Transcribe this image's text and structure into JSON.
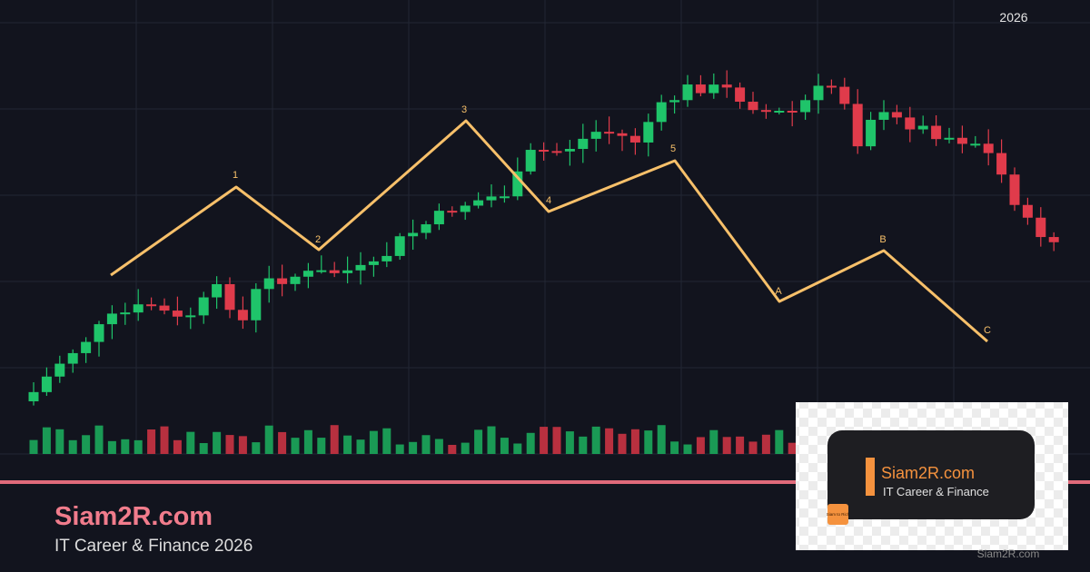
{
  "header": {
    "year": "2026"
  },
  "waves": [
    {
      "label": "1"
    },
    {
      "label": "2"
    },
    {
      "label": "3"
    },
    {
      "label": "4"
    },
    {
      "label": "5"
    },
    {
      "label": "A"
    },
    {
      "label": "B"
    },
    {
      "label": "C"
    }
  ],
  "brand": {
    "title": "Siam2R.com",
    "subtitle": "IT Career & Finance 2026"
  },
  "logo": {
    "title": "Siam2R.com",
    "subtitle": "IT Career & Finance",
    "badge": "Siam to Rich"
  },
  "watermark": "Siam2R.com"
}
